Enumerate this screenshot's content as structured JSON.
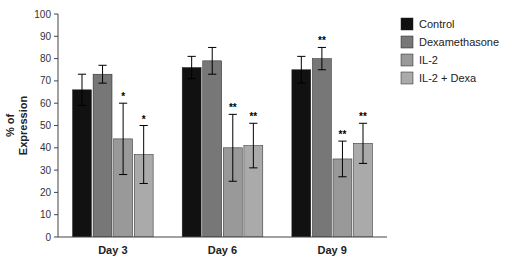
{
  "chart_data": {
    "type": "bar",
    "y_label": "% of\nExpression",
    "categories": [
      "Day 3",
      "Day 6",
      "Day 9"
    ],
    "series": [
      {
        "name": "Control",
        "color": "#111111",
        "values": [
          66,
          76,
          75
        ],
        "errors": [
          7,
          5,
          6
        ]
      },
      {
        "name": "Dexamethasone",
        "color": "#777777",
        "values": [
          73,
          79,
          80
        ],
        "errors": [
          4,
          6,
          5
        ]
      },
      {
        "name": "IL-2",
        "color": "#999999",
        "values": [
          44,
          40,
          35
        ],
        "errors": [
          16,
          15,
          8
        ]
      },
      {
        "name": "IL-2 + Dexa",
        "color": "#aaaaaa",
        "values": [
          37,
          41,
          42
        ],
        "errors": [
          13,
          10,
          9
        ]
      }
    ],
    "annotations": [
      {
        "series": "IL-2",
        "category": "Day 3",
        "text": "*"
      },
      {
        "series": "IL-2 + Dexa",
        "category": "Day 3",
        "text": "*"
      },
      {
        "series": "IL-2",
        "category": "Day 6",
        "text": "**"
      },
      {
        "series": "IL-2 + Dexa",
        "category": "Day 6",
        "text": "**"
      },
      {
        "series": "Dexamethasone",
        "category": "Day 9",
        "text": "**"
      },
      {
        "series": "IL-2",
        "category": "Day 9",
        "text": "**"
      },
      {
        "series": "IL-2 + Dexa",
        "category": "Day 9",
        "text": "**"
      }
    ],
    "ylim": [
      0,
      100
    ],
    "yticks": [
      0,
      10,
      20,
      30,
      40,
      50,
      60,
      70,
      80,
      90,
      100
    ],
    "grid": false,
    "legend": "right"
  }
}
